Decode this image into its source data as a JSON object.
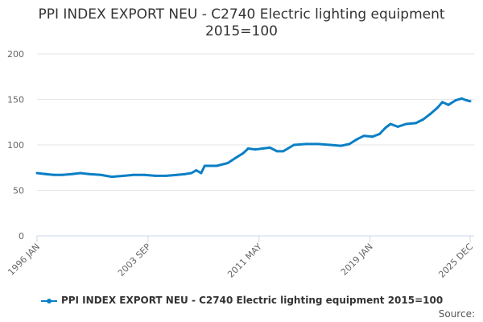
{
  "chart_data": {
    "type": "line",
    "title": "PPI INDEX EXPORT NEU - C2740 Electric lighting equipment 2015=100",
    "xlabel": "",
    "ylabel": "",
    "ylim": [
      0,
      200
    ],
    "yticks": [
      0,
      50,
      100,
      150,
      200
    ],
    "xlim": [
      "1996-01",
      "2025-12"
    ],
    "xtick_labels": [
      "1996 JAN",
      "2003 SEP",
      "2011 MAY",
      "2019 JAN",
      "2025 DEC"
    ],
    "xtick_dates": [
      "1996-01",
      "2003-09",
      "2011-05",
      "2019-01",
      "2025-12"
    ],
    "grid": "horizontal",
    "legend_position": "bottom",
    "color": "#0a7fc6",
    "series": [
      {
        "name": "PPI INDEX EXPORT NEU - C2740 Electric lighting equipment 2015=100",
        "x": [
          "1996-01",
          "1996-08",
          "1997-03",
          "1997-10",
          "1998-06",
          "1999-01",
          "1999-08",
          "2000-06",
          "2001-03",
          "2002-01",
          "2002-09",
          "2003-06",
          "2004-03",
          "2004-12",
          "2005-09",
          "2006-04",
          "2006-09",
          "2007-01",
          "2007-05",
          "2007-08",
          "2008-06",
          "2009-03",
          "2009-10",
          "2010-04",
          "2010-08",
          "2011-02",
          "2011-08",
          "2012-02",
          "2012-08",
          "2013-01",
          "2013-10",
          "2014-08",
          "2015-06",
          "2016-04",
          "2017-01",
          "2017-08",
          "2018-02",
          "2018-08",
          "2019-03",
          "2019-09",
          "2020-02",
          "2020-06",
          "2020-12",
          "2021-07",
          "2022-03",
          "2022-09",
          "2023-03",
          "2023-09",
          "2024-01",
          "2024-06",
          "2024-12",
          "2025-05",
          "2025-09",
          "2025-12"
        ],
        "values": [
          69,
          68,
          67,
          67,
          68,
          69,
          68,
          67,
          65,
          66,
          67,
          67,
          66,
          66,
          67,
          68,
          69,
          72,
          69,
          77,
          77,
          80,
          86,
          91,
          96,
          95,
          96,
          97,
          93,
          93,
          100,
          101,
          101,
          100,
          99,
          101,
          106,
          110,
          109,
          112,
          119,
          123,
          120,
          123,
          124,
          128,
          134,
          141,
          147,
          144,
          149,
          151,
          149,
          148
        ]
      }
    ]
  },
  "legend": {
    "label": "PPI INDEX EXPORT NEU - C2740 Electric lighting equipment 2015=100"
  },
  "source": "Source:"
}
